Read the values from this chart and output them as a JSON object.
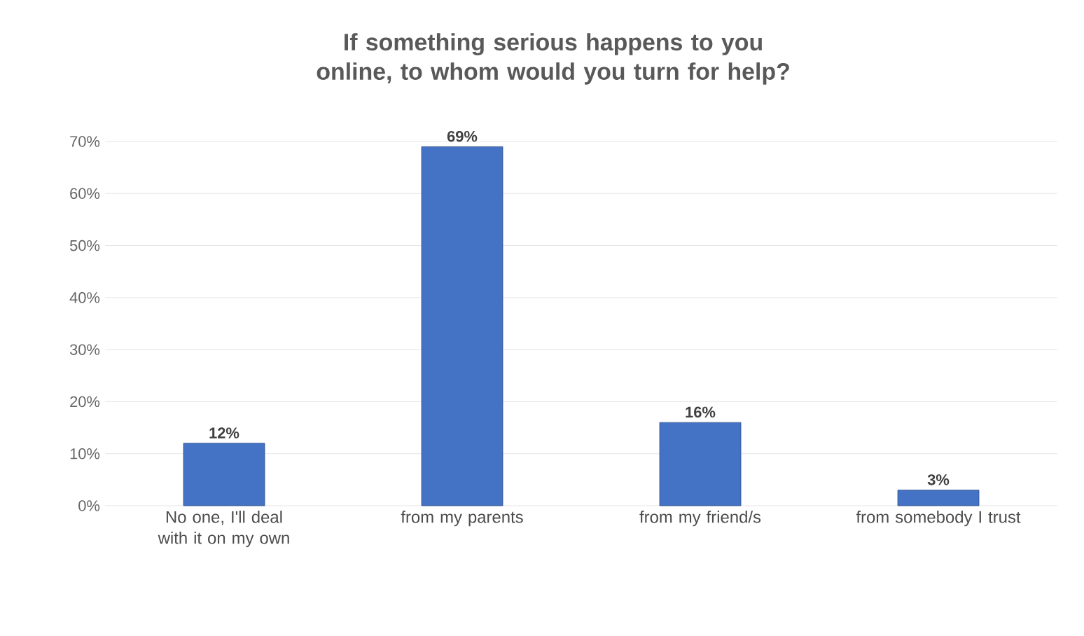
{
  "chart_data": {
    "type": "bar",
    "title": "If something serious happens to you online, to whom would you turn for help?",
    "categories": [
      "No one, I'll deal with it on my own",
      "from my parents",
      "from my friend/s",
      "from somebody I trust"
    ],
    "values": [
      12,
      69,
      16,
      3
    ],
    "value_labels": [
      "12%",
      "69%",
      "16%",
      "3%"
    ],
    "color": "#4472c4",
    "ylim": [
      0,
      70
    ],
    "yticks": [
      {
        "value": 0,
        "label": "0%"
      },
      {
        "value": 10,
        "label": "10%"
      },
      {
        "value": 20,
        "label": "20%"
      },
      {
        "value": 30,
        "label": "30%"
      },
      {
        "value": 40,
        "label": "40%"
      },
      {
        "value": 50,
        "label": "50%"
      },
      {
        "value": 60,
        "label": "60%"
      },
      {
        "value": 70,
        "label": "70%"
      }
    ],
    "grid": "y"
  }
}
